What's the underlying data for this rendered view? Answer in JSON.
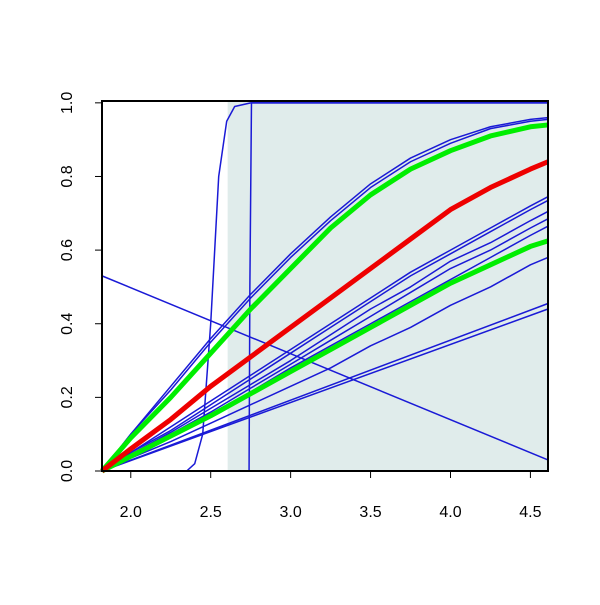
{
  "chart_data": {
    "type": "line",
    "xlim": [
      1.82,
      4.61
    ],
    "ylim": [
      0,
      1.005
    ],
    "xticks": [
      {
        "value": 2.0,
        "label": "2.0"
      },
      {
        "value": 2.5,
        "label": "2.5"
      },
      {
        "value": 3.0,
        "label": "3.0"
      },
      {
        "value": 3.5,
        "label": "3.5"
      },
      {
        "value": 4.0,
        "label": "4.0"
      },
      {
        "value": 4.5,
        "label": "4.5"
      }
    ],
    "yticks": [
      {
        "value": 0,
        "label": "0.0"
      },
      {
        "value": 0.2,
        "label": "0.2"
      },
      {
        "value": 0.4,
        "label": "0.4"
      },
      {
        "value": 0.6,
        "label": "0.6"
      },
      {
        "value": 0.8,
        "label": "0.8"
      },
      {
        "value": 1,
        "label": "1.0"
      }
    ],
    "shade": {
      "xmin": 2.606,
      "color": "#e0eceb"
    },
    "x": [
      1.82,
      2.0,
      2.25,
      2.5,
      2.75,
      3.0,
      3.25,
      3.5,
      3.75,
      4.0,
      4.25,
      4.5,
      4.61
    ],
    "series": [
      {
        "color": "#1a1ad6",
        "width": 1.5,
        "x": [
          1.82,
          4.61
        ],
        "values": [
          0.53,
          0.03
        ]
      },
      {
        "color": "#1a1ad6",
        "width": 1.5,
        "x": [
          1.82,
          2.35,
          2.4,
          2.45,
          2.5,
          2.55,
          2.6,
          2.65,
          2.75,
          4.61
        ],
        "values": [
          0,
          0,
          0.02,
          0.1,
          0.4,
          0.8,
          0.95,
          0.99,
          1.0,
          1.0
        ]
      },
      {
        "color": "#1a1ad6",
        "width": 1.5,
        "x": [
          1.82,
          2.74,
          2.745,
          2.755,
          4.61
        ],
        "values": [
          0,
          0,
          0.5,
          1.0,
          1.0
        ]
      },
      {
        "color": "#1a1ad6",
        "width": 1.5,
        "values": [
          0,
          0.1,
          0.22,
          0.35,
          0.47,
          0.58,
          0.68,
          0.77,
          0.84,
          0.89,
          0.93,
          0.95,
          0.955
        ]
      },
      {
        "color": "#1a1ad6",
        "width": 1.5,
        "values": [
          0,
          0.1,
          0.23,
          0.36,
          0.48,
          0.59,
          0.69,
          0.78,
          0.85,
          0.9,
          0.935,
          0.955,
          0.96
        ]
      },
      {
        "color": "#1a1ad6",
        "width": 1.5,
        "values": [
          0,
          0.05,
          0.12,
          0.19,
          0.26,
          0.33,
          0.4,
          0.47,
          0.54,
          0.6,
          0.66,
          0.72,
          0.745
        ]
      },
      {
        "color": "#1a1ad6",
        "width": 1.5,
        "values": [
          0,
          0.05,
          0.11,
          0.18,
          0.25,
          0.32,
          0.39,
          0.46,
          0.53,
          0.59,
          0.65,
          0.71,
          0.735
        ]
      },
      {
        "color": "#1a1ad6",
        "width": 1.5,
        "values": [
          0,
          0.045,
          0.105,
          0.17,
          0.235,
          0.3,
          0.37,
          0.44,
          0.5,
          0.57,
          0.62,
          0.68,
          0.705
        ]
      },
      {
        "color": "#1a1ad6",
        "width": 1.5,
        "values": [
          0,
          0.04,
          0.1,
          0.16,
          0.225,
          0.29,
          0.355,
          0.42,
          0.485,
          0.55,
          0.6,
          0.66,
          0.685
        ]
      },
      {
        "color": "#1a1ad6",
        "width": 1.5,
        "values": [
          0,
          0.04,
          0.095,
          0.155,
          0.215,
          0.28,
          0.34,
          0.4,
          0.46,
          0.52,
          0.58,
          0.64,
          0.665
        ]
      },
      {
        "color": "#1a1ad6",
        "width": 1.5,
        "values": [
          0,
          0.035,
          0.08,
          0.13,
          0.18,
          0.23,
          0.28,
          0.34,
          0.39,
          0.45,
          0.5,
          0.56,
          0.58
        ]
      },
      {
        "color": "#1a1ad6",
        "width": 1.5,
        "x": [
          1.82,
          4.61
        ],
        "values": [
          0,
          0.455
        ]
      },
      {
        "color": "#1a1ad6",
        "width": 1.5,
        "x": [
          1.82,
          4.61
        ],
        "values": [
          0,
          0.44
        ]
      },
      {
        "color": "#00ee00",
        "width": 5,
        "values": [
          0,
          0.09,
          0.2,
          0.32,
          0.44,
          0.55,
          0.66,
          0.75,
          0.82,
          0.87,
          0.91,
          0.935,
          0.94
        ]
      },
      {
        "color": "#00ee00",
        "width": 5,
        "values": [
          0,
          0.04,
          0.095,
          0.15,
          0.21,
          0.27,
          0.33,
          0.39,
          0.45,
          0.51,
          0.56,
          0.61,
          0.625
        ]
      },
      {
        "color": "#ee0000",
        "width": 5,
        "values": [
          0,
          0.06,
          0.14,
          0.23,
          0.31,
          0.39,
          0.47,
          0.55,
          0.63,
          0.71,
          0.77,
          0.82,
          0.84
        ]
      }
    ]
  }
}
